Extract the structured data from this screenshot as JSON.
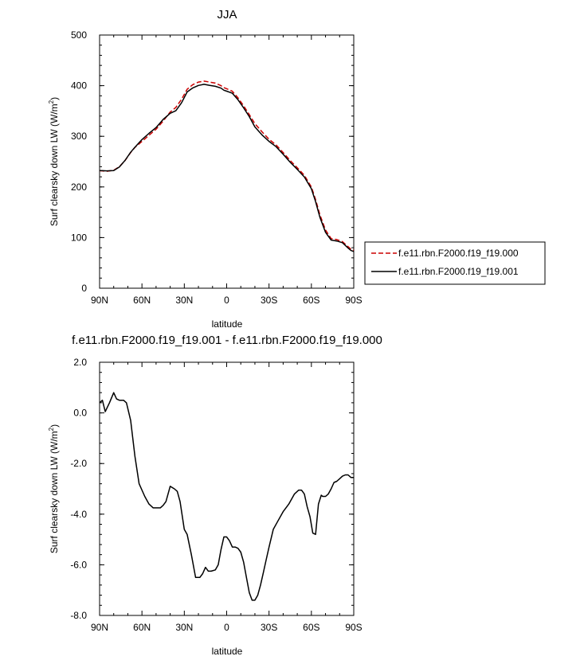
{
  "chart_data": [
    {
      "type": "line",
      "title": "JJA",
      "xlabel": "latitude",
      "ylabel": "Surf clearsky down LW (W/m",
      "ylabel_sup": "2",
      "ylabel_close": ")",
      "xlim": [
        90,
        -90
      ],
      "ylim": [
        0,
        500
      ],
      "xticks": [
        90,
        60,
        30,
        0,
        -30,
        -60,
        -90
      ],
      "xtick_labels": [
        "90N",
        "60N",
        "30N",
        "0",
        "30S",
        "60S",
        "90S"
      ],
      "yticks": [
        0,
        100,
        200,
        300,
        400,
        500
      ],
      "ytick_labels": [
        "0",
        "100",
        "200",
        "300",
        "400",
        "500"
      ],
      "legend_position": "right",
      "series": [
        {
          "name": "f.e11.rbn.F2000.f19_f19.000",
          "color": "#cc0000",
          "dash": "dashed",
          "x": [
            90,
            85,
            80,
            76,
            72,
            68,
            65,
            60,
            55,
            50,
            45,
            40,
            36,
            32,
            28,
            24,
            20,
            16,
            12,
            8,
            4,
            2,
            0,
            -4,
            -8,
            -12,
            -16,
            -20,
            -25,
            -30,
            -35,
            -40,
            -45,
            -50,
            -55,
            -60,
            -63,
            -66,
            -70,
            -74,
            -78,
            -82,
            -86,
            -88,
            -90
          ],
          "y": [
            232,
            231,
            233,
            240,
            252,
            268,
            278,
            290,
            302,
            314,
            330,
            348,
            357,
            373,
            393,
            402,
            407,
            409,
            407,
            405,
            400,
            396,
            394,
            389,
            376,
            360,
            343,
            325,
            309,
            294,
            283,
            268,
            252,
            238,
            223,
            200,
            175,
            145,
            115,
            98,
            96,
            92,
            82,
            77,
            75
          ]
        },
        {
          "name": "f.e11.rbn.F2000.f19_f19.001",
          "color": "#000000",
          "dash": "solid",
          "x": [
            90,
            85,
            80,
            76,
            72,
            68,
            65,
            60,
            55,
            50,
            45,
            40,
            36,
            32,
            28,
            24,
            20,
            16,
            12,
            8,
            4,
            2,
            0,
            -4,
            -8,
            -12,
            -16,
            -20,
            -25,
            -30,
            -35,
            -40,
            -45,
            -50,
            -55,
            -60,
            -63,
            -66,
            -70,
            -74,
            -78,
            -82,
            -86,
            -88,
            -90
          ],
          "y": [
            232.4,
            231.7,
            232.2,
            239.5,
            252.3,
            268.5,
            278.3,
            293.5,
            305.8,
            317.3,
            333.3,
            345.5,
            350.5,
            366.0,
            387.6,
            395.6,
            400.4,
            402.7,
            400.7,
            398.8,
            395.2,
            391.0,
            389.1,
            385.0,
            372.2,
            356.2,
            338.9,
            318.5,
            302.8,
            290.0,
            279.6,
            264.4,
            248.6,
            234.8,
            219.7,
            196.6,
            171.0,
            140.2,
            110.3,
            95.1,
            93.3,
            90.0,
            79.3,
            74.5,
            72.5
          ]
        }
      ]
    },
    {
      "type": "line",
      "title": "f.e11.rbn.F2000.f19_f19.001 - f.e11.rbn.F2000.f19_f19.000",
      "xlabel": "latitude",
      "ylabel": "Surf clearsky down LW (W/m",
      "ylabel_sup": "2",
      "ylabel_close": ")",
      "xlim": [
        90,
        -90
      ],
      "ylim": [
        -8,
        2
      ],
      "xticks": [
        90,
        60,
        30,
        0,
        -30,
        -60,
        -90
      ],
      "xtick_labels": [
        "90N",
        "60N",
        "30N",
        "0",
        "30S",
        "60S",
        "90S"
      ],
      "yticks": [
        -8,
        -6,
        -4,
        -2,
        0,
        2
      ],
      "ytick_labels": [
        "-8.0",
        "-6.0",
        "-4.0",
        "-2.0",
        "0.0",
        "2.0"
      ],
      "series": [
        {
          "color": "#000000",
          "dash": "solid",
          "x": [
            90,
            88,
            86,
            83,
            80,
            78,
            76,
            73,
            71,
            68,
            65,
            62,
            58,
            55,
            52,
            49,
            47,
            45,
            43,
            40,
            37,
            35,
            33,
            30,
            28,
            25,
            22,
            19,
            17,
            15,
            13,
            11,
            8,
            6,
            4,
            2,
            0,
            -2,
            -4,
            -6,
            -8,
            -10,
            -12,
            -14,
            -16,
            -18,
            -20,
            -22,
            -24,
            -26,
            -28,
            -30,
            -33,
            -36,
            -40,
            -44,
            -48,
            -51,
            -53,
            -55,
            -57,
            -59,
            -61,
            -63,
            -65,
            -67,
            -68,
            -70,
            -72,
            -74,
            -76,
            -78,
            -80,
            -82,
            -84,
            -86,
            -88,
            -90
          ],
          "y": [
            0.4,
            0.5,
            0.05,
            0.4,
            0.8,
            0.55,
            0.5,
            0.5,
            0.4,
            -0.3,
            -1.7,
            -2.8,
            -3.3,
            -3.6,
            -3.75,
            -3.75,
            -3.75,
            -3.65,
            -3.5,
            -2.9,
            -3.0,
            -3.1,
            -3.5,
            -4.6,
            -4.8,
            -5.6,
            -6.5,
            -6.5,
            -6.35,
            -6.1,
            -6.25,
            -6.25,
            -6.2,
            -6.0,
            -5.4,
            -4.9,
            -4.9,
            -5.05,
            -5.3,
            -5.3,
            -5.35,
            -5.5,
            -5.9,
            -6.5,
            -7.1,
            -7.4,
            -7.4,
            -7.2,
            -6.8,
            -6.3,
            -5.8,
            -5.3,
            -4.6,
            -4.3,
            -3.9,
            -3.6,
            -3.2,
            -3.05,
            -3.05,
            -3.2,
            -3.7,
            -4.1,
            -4.75,
            -4.8,
            -3.6,
            -3.25,
            -3.3,
            -3.3,
            -3.2,
            -3.0,
            -2.75,
            -2.7,
            -2.6,
            -2.5,
            -2.45,
            -2.45,
            -2.55,
            -2.55
          ]
        }
      ]
    }
  ]
}
